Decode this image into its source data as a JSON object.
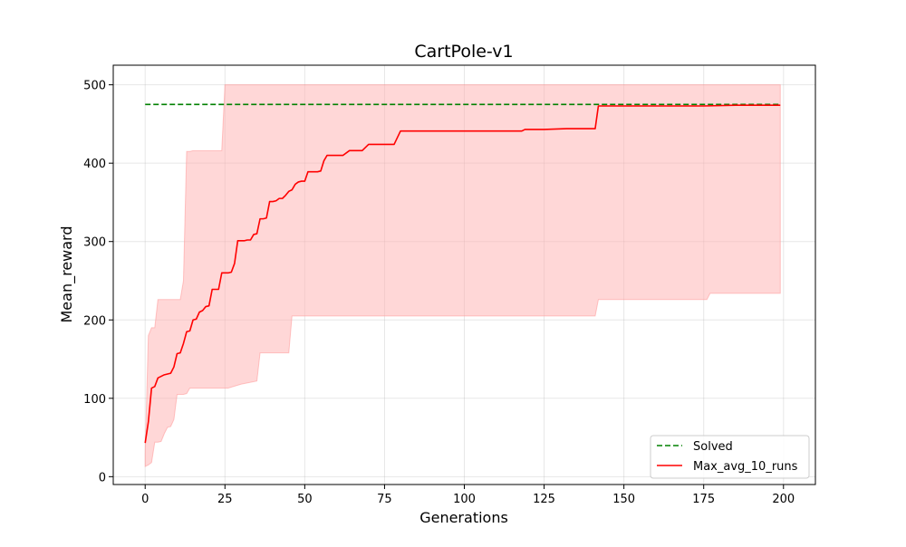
{
  "chart_data": {
    "type": "line",
    "title": "CartPole-v1",
    "xlabel": "Generations",
    "ylabel": "Mean_reward",
    "xlim": [
      -10,
      210
    ],
    "ylim": [
      -10,
      525
    ],
    "xticks": [
      0,
      25,
      50,
      75,
      100,
      125,
      150,
      175,
      200
    ],
    "yticks": [
      0,
      100,
      200,
      300,
      400,
      500
    ],
    "grid": true,
    "legend_position": "lower right",
    "series": [
      {
        "name": "Solved",
        "style": "dashed",
        "color": "#008000",
        "x": [
          0,
          199
        ],
        "y": [
          475,
          475
        ]
      },
      {
        "name": "Max_avg_10_runs",
        "style": "solid",
        "color": "#ff0000",
        "x": [
          0,
          1,
          2,
          3,
          4,
          5,
          6,
          7,
          8,
          9,
          10,
          11,
          12,
          13,
          14,
          15,
          16,
          17,
          18,
          19,
          20,
          21,
          22,
          23,
          24,
          25,
          26,
          27,
          28,
          29,
          30,
          31,
          32,
          33,
          34,
          35,
          36,
          37,
          38,
          39,
          40,
          41,
          42,
          43,
          44,
          45,
          46,
          47,
          48,
          49,
          50,
          51,
          52,
          53,
          54,
          55,
          56,
          57,
          58,
          59,
          60,
          62,
          64,
          66,
          68,
          70,
          72,
          74,
          76,
          78,
          80,
          85,
          90,
          100,
          110,
          118,
          119,
          125,
          132,
          141,
          142,
          150,
          165,
          175,
          185,
          199
        ],
        "y": [
          43,
          70,
          113,
          115,
          126,
          128,
          130,
          131,
          132,
          140,
          157,
          158,
          170,
          185,
          186,
          200,
          201,
          210,
          212,
          217,
          218,
          239,
          239,
          239,
          260,
          260,
          260,
          261,
          272,
          301,
          301,
          301,
          302,
          302,
          309,
          310,
          329,
          329,
          330,
          351,
          351,
          352,
          355,
          355,
          359,
          364,
          366,
          373,
          376,
          377,
          377,
          389,
          389,
          389,
          389,
          390,
          403,
          410,
          410,
          410,
          410,
          410,
          416,
          416,
          416,
          424,
          424,
          424,
          424,
          424,
          441,
          441,
          441,
          441,
          441,
          441,
          443,
          443,
          444,
          444,
          473,
          473,
          473,
          473,
          474,
          474
        ]
      }
    ],
    "band": {
      "color": "#ffb0b0",
      "x": [
        0,
        1,
        2,
        3,
        4,
        5,
        6,
        7,
        8,
        9,
        10,
        11,
        12,
        13,
        14,
        15,
        20,
        24,
        25,
        26,
        30,
        35,
        36,
        38,
        45,
        46,
        50,
        100,
        130,
        140,
        141,
        142,
        145,
        150,
        160,
        170,
        175,
        176,
        177,
        180,
        190,
        199
      ],
      "lower": [
        13,
        15,
        18,
        44,
        44,
        45,
        55,
        63,
        64,
        73,
        105,
        105,
        105,
        106,
        113,
        113,
        113,
        113,
        113,
        113,
        118,
        122,
        158,
        158,
        158,
        205,
        205,
        205,
        205,
        205,
        205,
        226,
        226,
        226,
        226,
        226,
        226,
        226,
        234,
        234,
        234,
        234
      ],
      "upper": [
        30,
        180,
        190,
        190,
        226,
        226,
        226,
        226,
        226,
        226,
        226,
        226,
        250,
        415,
        415,
        416,
        416,
        416,
        500,
        500,
        500,
        500,
        500,
        500,
        500,
        500,
        500,
        500,
        500,
        500,
        500,
        500,
        500,
        500,
        500,
        500,
        500,
        500,
        500,
        500,
        500,
        500
      ]
    }
  }
}
